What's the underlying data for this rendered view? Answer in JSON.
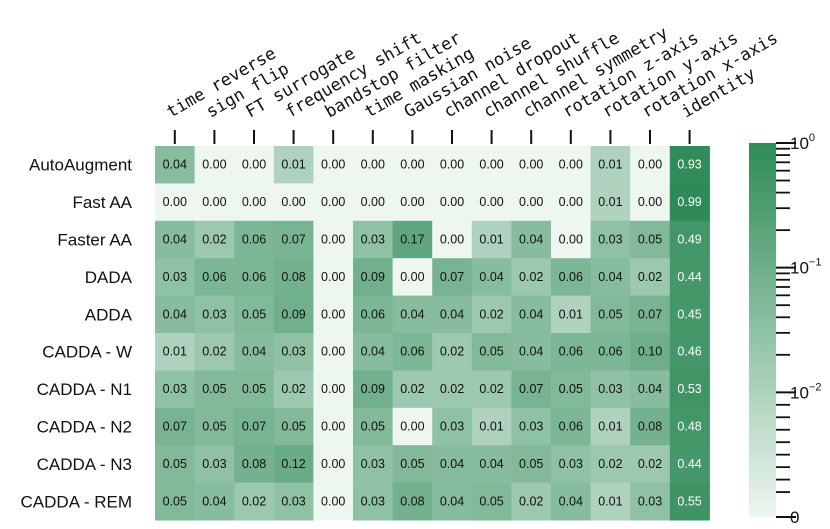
{
  "chart_data": {
    "type": "heatmap",
    "color_scale": "symlog",
    "colors": {
      "low": "#eef6f0",
      "high": "#2e8b57"
    },
    "columns": [
      "time reverse",
      "sign flip",
      "FT surrogate",
      "frequency shift",
      "bandstop filter",
      "time masking",
      "Gaussian noise",
      "channel dropout",
      "channel shuffle",
      "channel symmetry",
      "rotation z-axis",
      "rotation y-axis",
      "rotation x-axis",
      "identity"
    ],
    "rows": [
      "AutoAugment",
      "Fast AA",
      "Faster AA",
      "DADA",
      "ADDA",
      "CADDA - W",
      "CADDA - N1",
      "CADDA - N2",
      "CADDA - N3",
      "CADDA - REM"
    ],
    "values": [
      [
        0.04,
        0.0,
        0.0,
        0.01,
        0.0,
        0.0,
        0.0,
        0.0,
        0.0,
        0.0,
        0.0,
        0.01,
        0.0,
        0.93
      ],
      [
        0.0,
        0.0,
        0.0,
        0.0,
        0.0,
        0.0,
        0.0,
        0.0,
        0.0,
        0.0,
        0.0,
        0.01,
        0.0,
        0.99
      ],
      [
        0.04,
        0.02,
        0.06,
        0.07,
        0.0,
        0.03,
        0.17,
        0.0,
        0.01,
        0.04,
        0.0,
        0.03,
        0.05,
        0.49
      ],
      [
        0.03,
        0.06,
        0.06,
        0.08,
        0.0,
        0.09,
        0.0,
        0.07,
        0.04,
        0.02,
        0.06,
        0.04,
        0.02,
        0.44
      ],
      [
        0.04,
        0.03,
        0.05,
        0.09,
        0.0,
        0.06,
        0.04,
        0.04,
        0.02,
        0.04,
        0.01,
        0.05,
        0.07,
        0.45
      ],
      [
        0.01,
        0.02,
        0.04,
        0.03,
        0.0,
        0.04,
        0.06,
        0.02,
        0.05,
        0.04,
        0.06,
        0.06,
        0.1,
        0.46
      ],
      [
        0.03,
        0.05,
        0.05,
        0.02,
        0.0,
        0.09,
        0.02,
        0.02,
        0.02,
        0.07,
        0.05,
        0.03,
        0.04,
        0.53
      ],
      [
        0.07,
        0.05,
        0.07,
        0.05,
        0.0,
        0.05,
        0.0,
        0.03,
        0.01,
        0.03,
        0.06,
        0.01,
        0.08,
        0.48
      ],
      [
        0.05,
        0.03,
        0.08,
        0.12,
        0.0,
        0.03,
        0.05,
        0.04,
        0.04,
        0.05,
        0.03,
        0.02,
        0.02,
        0.44
      ],
      [
        0.05,
        0.04,
        0.02,
        0.03,
        0.0,
        0.03,
        0.08,
        0.04,
        0.05,
        0.02,
        0.04,
        0.01,
        0.03,
        0.55
      ]
    ],
    "colorbar": {
      "range": [
        0,
        1
      ],
      "ticks": [
        {
          "value": 1,
          "base": "10",
          "exp": "0"
        },
        {
          "value": 0.1,
          "base": "10",
          "exp": "−1"
        },
        {
          "value": 0.01,
          "base": "10",
          "exp": "−2"
        },
        {
          "value": 0,
          "base": "0",
          "exp": ""
        }
      ]
    },
    "title": "",
    "xlabel": "",
    "ylabel": ""
  }
}
